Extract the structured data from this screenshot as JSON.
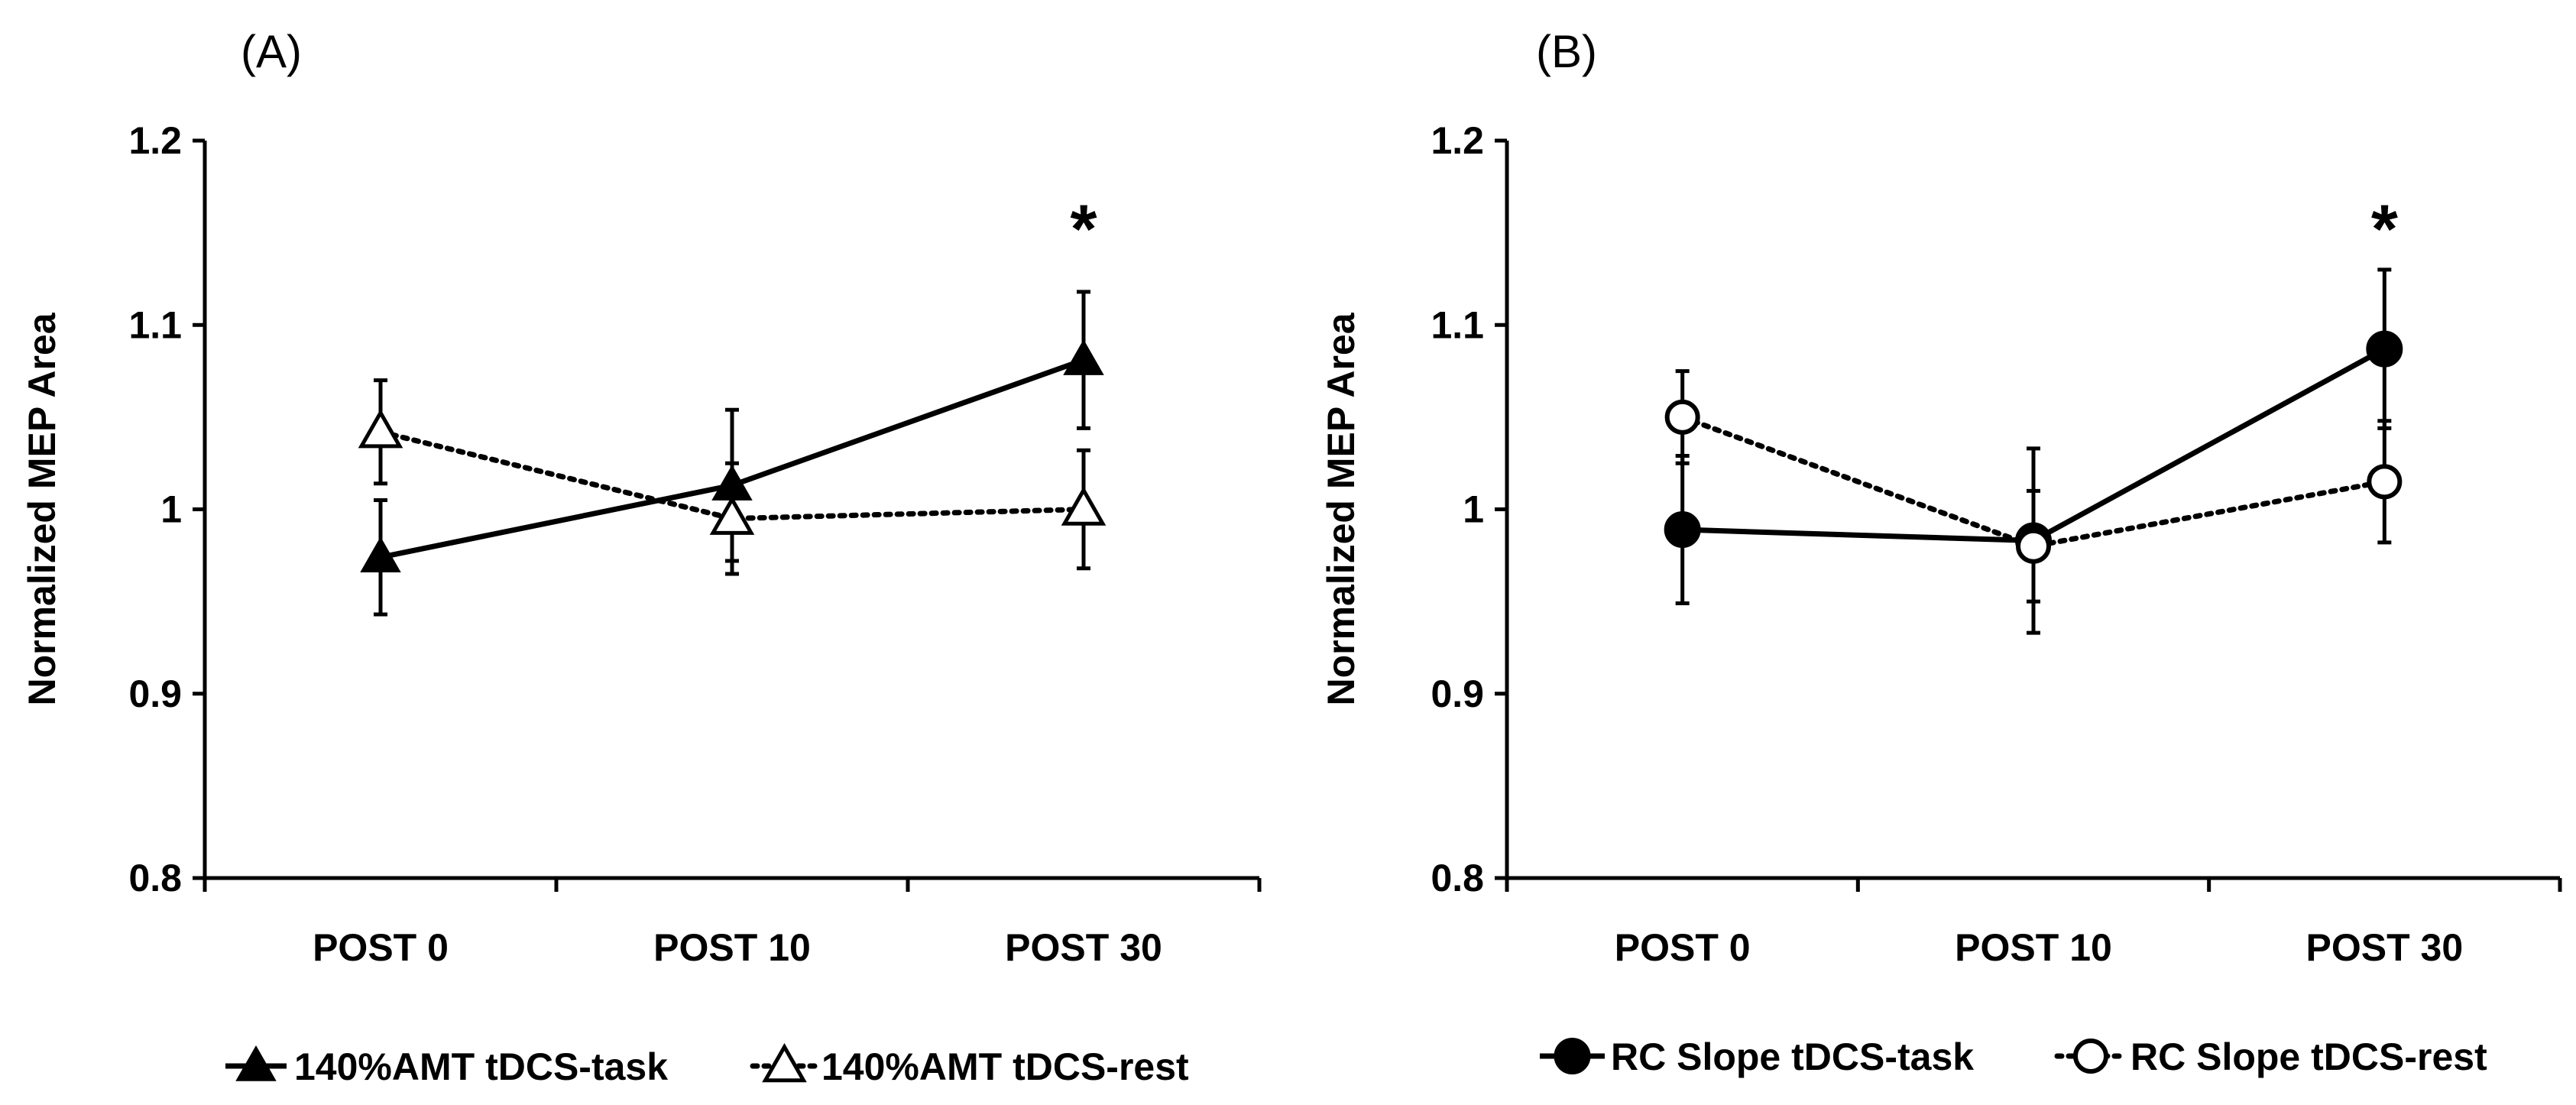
{
  "chart_data": [
    {
      "type": "line",
      "panel_label": "(A)",
      "categories": [
        "POST 0",
        "POST 10",
        "POST 30"
      ],
      "ylabel": "Normalized MEP Area",
      "xlabel": "",
      "ylim": [
        0.8,
        1.2
      ],
      "yticks": [
        "0.8",
        "0.9",
        "1",
        "1.1",
        "1.2"
      ],
      "grid": false,
      "legend_position": "bottom",
      "series": [
        {
          "name": "140%AMT tDCS-task",
          "values": [
            0.974,
            1.013,
            1.081
          ],
          "errors": [
            0.031,
            0.041,
            0.037
          ],
          "marker": "triangle-filled",
          "line": "solid"
        },
        {
          "name": "140%AMT tDCS-rest",
          "values": [
            1.042,
            0.995,
            1.0
          ],
          "errors": [
            0.028,
            0.03,
            0.032
          ],
          "marker": "triangle-open",
          "line": "dotted"
        }
      ],
      "annotations": [
        {
          "text": "*",
          "category": "POST 30",
          "y": 1.16
        }
      ]
    },
    {
      "type": "line",
      "panel_label": "(B)",
      "categories": [
        "POST 0",
        "POST 10",
        "POST 30"
      ],
      "ylabel": "Normalized MEP Area",
      "xlabel": "",
      "ylim": [
        0.8,
        1.2
      ],
      "yticks": [
        "0.8",
        "0.9",
        "1",
        "1.1",
        "1.2"
      ],
      "grid": false,
      "legend_position": "bottom",
      "series": [
        {
          "name": "RC Slope tDCS-task",
          "values": [
            0.989,
            0.983,
            1.087
          ],
          "errors": [
            0.04,
            0.05,
            0.043
          ],
          "marker": "circle-filled",
          "line": "solid"
        },
        {
          "name": "RC Slope tDCS-rest",
          "values": [
            1.05,
            0.98,
            1.015
          ],
          "errors": [
            0.025,
            0.03,
            0.033
          ],
          "marker": "circle-open",
          "line": "dotted"
        }
      ],
      "annotations": [
        {
          "text": "*",
          "category": "POST 30",
          "y": 1.16
        }
      ]
    }
  ]
}
